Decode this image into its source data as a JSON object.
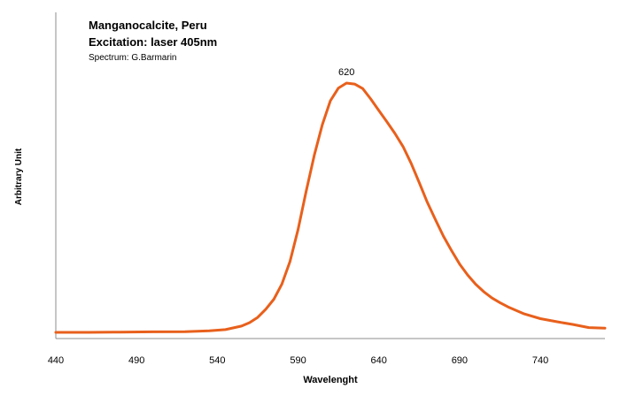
{
  "chart_data": {
    "type": "line",
    "title": "Manganocalcite, Peru",
    "subtitle": "Excitation: laser 405nm",
    "credit": "Spectrum: G.Barmarin",
    "xlabel": "Wavelenght",
    "ylabel": "Arbitrary Unit",
    "xlim": [
      440,
      780
    ],
    "ylim": [
      0,
      100
    ],
    "x_ticks": [
      "440",
      "490",
      "540",
      "590",
      "640",
      "690",
      "740"
    ],
    "grid": false,
    "legend": "none",
    "annotations": [
      {
        "text": "620",
        "x": 620,
        "y": 100
      }
    ],
    "series": [
      {
        "color": "#E8601C",
        "x": [
          440,
          460,
          480,
          500,
          520,
          535,
          545,
          555,
          560,
          565,
          570,
          575,
          580,
          585,
          590,
          595,
          600,
          605,
          610,
          615,
          620,
          625,
          630,
          635,
          640,
          645,
          650,
          655,
          660,
          665,
          670,
          675,
          680,
          685,
          690,
          695,
          700,
          705,
          710,
          715,
          720,
          730,
          740,
          750,
          760,
          770,
          780
        ],
        "y": [
          0,
          0,
          0.1,
          0.2,
          0.3,
          0.6,
          1.1,
          2.5,
          3.9,
          6,
          9.3,
          13.3,
          19.4,
          28.4,
          41.2,
          56.5,
          71,
          83.3,
          92.9,
          98,
          100,
          99.6,
          97.8,
          93.6,
          89,
          84.5,
          79.8,
          74.5,
          67.8,
          60.1,
          52.2,
          45.3,
          38.6,
          32.8,
          27.4,
          23,
          19.3,
          16.3,
          13.8,
          11.9,
          10.2,
          7.4,
          5.5,
          4.3,
          3.2,
          1.9,
          1.7
        ]
      }
    ]
  }
}
